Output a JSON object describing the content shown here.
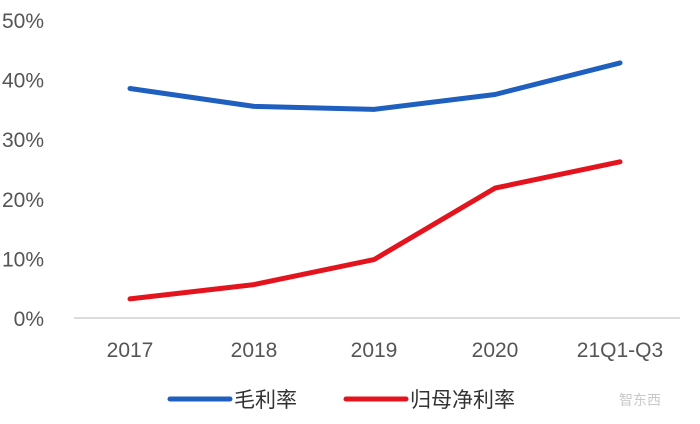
{
  "chart_data": {
    "type": "line",
    "title": "",
    "xlabel": "",
    "ylabel": "",
    "categories": [
      "2017",
      "2018",
      "2019",
      "2020",
      "21Q1-Q3"
    ],
    "y_ticks": [
      "0%",
      "10%",
      "20%",
      "30%",
      "40%",
      "50%"
    ],
    "ylim": [
      0,
      50
    ],
    "grid": false,
    "legend_position": "bottom",
    "series": [
      {
        "name": "毛利率",
        "color": "#1f5fbf",
        "values": [
          38.5,
          35.5,
          35.0,
          37.5,
          42.8
        ]
      },
      {
        "name": "归母净利率",
        "color": "#e4141e",
        "values": [
          3.2,
          5.6,
          9.8,
          21.8,
          26.2
        ]
      }
    ]
  },
  "watermark": "智东西"
}
